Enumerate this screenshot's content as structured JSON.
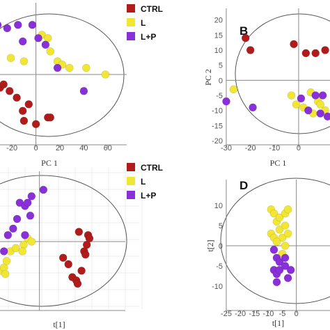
{
  "colors": {
    "CTRL": "#b01c1c",
    "L": "#f2e635",
    "L+P": "#8a30d8"
  },
  "chart_data": [
    {
      "panel": "A",
      "type": "scatter",
      "letter": "",
      "xlabel": "PC 1",
      "ylabel": "",
      "xlim": [
        -30,
        70
      ],
      "ylim": [
        -20,
        20
      ],
      "xticks": [
        -20,
        0,
        20,
        40,
        60
      ],
      "yticks": [],
      "grid": false,
      "legend": {
        "position": "top-right",
        "entries": [
          "CTRL",
          "L",
          "L+P"
        ]
      },
      "series": [
        {
          "name": "CTRL",
          "points": [
            [
              -30,
              -4
            ],
            [
              -22,
              -5
            ],
            [
              -16,
              -7
            ],
            [
              -11,
              -11
            ],
            [
              -6,
              -9
            ],
            [
              -10,
              -14
            ],
            [
              0,
              -15
            ],
            [
              10,
              -13
            ],
            [
              12,
              -13
            ],
            [
              -27,
              -3
            ]
          ]
        },
        {
          "name": "L",
          "points": [
            [
              -21,
              5
            ],
            [
              -10,
              4
            ],
            [
              5,
              12
            ],
            [
              10,
              11
            ],
            [
              12,
              7
            ],
            [
              18,
              4
            ],
            [
              22,
              3
            ],
            [
              28,
              2
            ],
            [
              42,
              2
            ],
            [
              58,
              0
            ]
          ]
        },
        {
          "name": "L+P",
          "points": [
            [
              -32,
              15
            ],
            [
              -24,
              14
            ],
            [
              -15,
              15
            ],
            [
              -11,
              10
            ],
            [
              -3,
              15
            ],
            [
              2,
              11
            ],
            [
              8,
              9
            ],
            [
              18,
              2
            ],
            [
              40,
              -5
            ]
          ]
        }
      ]
    },
    {
      "panel": "B",
      "type": "scatter",
      "letter": "B",
      "xlabel": "PC 1",
      "ylabel": "PC 2",
      "xlim": [
        -30,
        13
      ],
      "ylim": [
        -20,
        22
      ],
      "xticks": [
        -30,
        -20,
        -10,
        0
      ],
      "yticks": [
        -20,
        -15,
        -10,
        -5,
        0,
        5,
        10,
        15,
        20
      ],
      "grid": false,
      "legend": null,
      "series": [
        {
          "name": "CTRL",
          "points": [
            [
              -22,
              14
            ],
            [
              -20,
              10
            ],
            [
              -2,
              12
            ],
            [
              3,
              9
            ],
            [
              7,
              9
            ],
            [
              11,
              10
            ]
          ]
        },
        {
          "name": "L",
          "points": [
            [
              -27,
              -3
            ],
            [
              -3,
              -5
            ],
            [
              -1,
              -8
            ],
            [
              2,
              -9
            ],
            [
              5,
              -4
            ],
            [
              6,
              -11
            ],
            [
              8,
              -7
            ],
            [
              9,
              -8
            ],
            [
              11,
              -10
            ]
          ]
        },
        {
          "name": "L+P",
          "points": [
            [
              -30,
              -7
            ],
            [
              -19,
              -9
            ],
            [
              1,
              -6
            ],
            [
              4,
              -10
            ],
            [
              7,
              -5
            ],
            [
              9,
              -11
            ],
            [
              10,
              -5
            ],
            [
              12,
              -12
            ]
          ]
        }
      ]
    },
    {
      "panel": "C",
      "type": "scatter",
      "letter": "",
      "xlabel": "t[1]",
      "ylabel": "",
      "xlim": [
        -30,
        60
      ],
      "ylim": [
        -20,
        20
      ],
      "xticks": [],
      "yticks": [],
      "grid": true,
      "legend": {
        "position": "top-right",
        "entries": [
          "CTRL",
          "L",
          "L+P"
        ]
      },
      "series": [
        {
          "name": "CTRL",
          "points": [
            [
              18,
              -5
            ],
            [
              22,
              -7
            ],
            [
              25,
              -11
            ],
            [
              28,
              -12
            ],
            [
              32,
              -9
            ],
            [
              34,
              -3
            ],
            [
              35,
              -4
            ],
            [
              36,
              -1
            ],
            [
              37,
              2
            ],
            [
              38,
              1
            ],
            [
              30,
              3
            ],
            [
              29,
              -13
            ]
          ]
        },
        {
          "name": "L",
          "points": [
            [
              -29,
              -9
            ],
            [
              -27,
              -8
            ],
            [
              -26,
              -10
            ],
            [
              -25,
              -6
            ],
            [
              -22,
              -3
            ],
            [
              -18,
              -2
            ],
            [
              -12,
              -1
            ],
            [
              -13,
              -3
            ],
            [
              -9,
              1
            ],
            [
              -6,
              0
            ]
          ]
        },
        {
          "name": "L+P",
          "points": [
            [
              -27,
              -3
            ],
            [
              -24,
              2
            ],
            [
              -20,
              4
            ],
            [
              -17,
              7
            ],
            [
              -15,
              12
            ],
            [
              -11,
              11
            ],
            [
              -9,
              12
            ],
            [
              -6,
              14
            ],
            [
              3,
              16
            ],
            [
              -11,
              2
            ],
            [
              -7,
              8
            ]
          ]
        }
      ]
    },
    {
      "panel": "D",
      "type": "scatter",
      "letter": "D",
      "xlabel": "t[1]",
      "ylabel": "t[2]",
      "xlim": [
        -25,
        12
      ],
      "ylim": [
        -15,
        15
      ],
      "xticks": [
        -25,
        -20,
        -15,
        -10,
        -5,
        0
      ],
      "yticks": [
        -10,
        -5,
        0,
        5,
        10
      ],
      "grid": false,
      "legend": null,
      "series": [
        {
          "name": "L",
          "points": [
            [
              -9,
              9
            ],
            [
              -8,
              8
            ],
            [
              -7,
              6
            ],
            [
              -6,
              7
            ],
            [
              -4,
              8
            ],
            [
              -3,
              9
            ],
            [
              -9,
              3
            ],
            [
              -8,
              2
            ],
            [
              -6,
              4
            ],
            [
              -4,
              5
            ],
            [
              -5,
              2
            ],
            [
              -3,
              3
            ],
            [
              -7,
              1
            ],
            [
              -5,
              -2
            ],
            [
              -4,
              0
            ]
          ]
        },
        {
          "name": "L+P",
          "points": [
            [
              -8,
              -1
            ],
            [
              -7,
              -3
            ],
            [
              -6,
              -4
            ],
            [
              -4,
              -5
            ],
            [
              -8,
              -6
            ],
            [
              -7,
              -7
            ],
            [
              -6,
              -6
            ],
            [
              -3,
              -8
            ],
            [
              -4,
              -3
            ],
            [
              -2,
              -6
            ],
            [
              -7,
              -9
            ]
          ]
        }
      ]
    }
  ]
}
